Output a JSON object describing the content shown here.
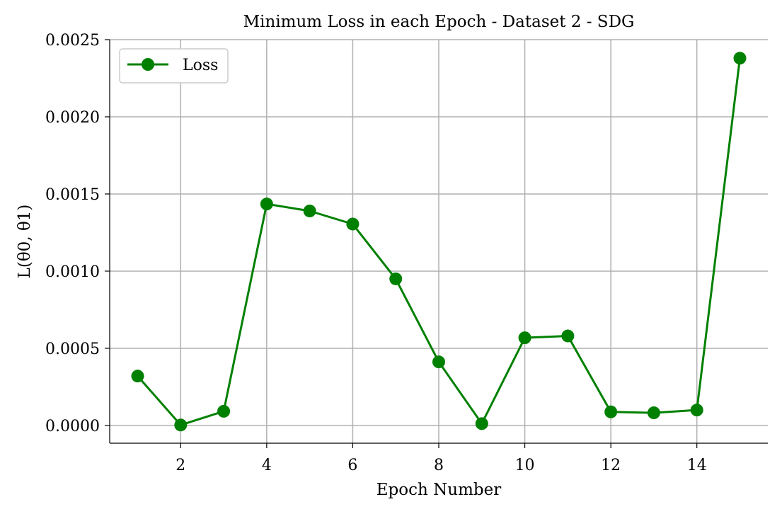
{
  "chart_data": {
    "type": "line",
    "title": "Minimum Loss in each Epoch - Dataset 2 - SDG",
    "xlabel": "Epoch Number",
    "ylabel": "L(θ0, θ1)",
    "xlim": [
      0.35,
      15.65
    ],
    "ylim": [
      -0.000115,
      0.0025
    ],
    "x_ticks": [
      2,
      4,
      6,
      8,
      10,
      12,
      14
    ],
    "x_tick_labels": [
      "2",
      "4",
      "6",
      "8",
      "10",
      "12",
      "14"
    ],
    "y_ticks": [
      0,
      0.0005,
      0.001,
      0.0015,
      0.002,
      0.0025
    ],
    "y_tick_labels": [
      "0.0000",
      "0.0005",
      "0.0010",
      "0.0015",
      "0.0020",
      "0.0025"
    ],
    "grid": true,
    "legend_position": "upper-left",
    "series": [
      {
        "name": "Loss",
        "color": "#008000",
        "marker": "circle",
        "x": [
          1,
          2,
          3,
          4,
          5,
          6,
          7,
          8,
          9,
          10,
          11,
          12,
          13,
          14,
          15
        ],
        "values": [
          0.00032,
          3e-06,
          9.2e-05,
          0.001435,
          0.00139,
          0.001305,
          0.00095,
          0.000412,
          1.2e-05,
          0.000568,
          0.00058,
          8.8e-05,
          8.2e-05,
          0.0001,
          0.00238
        ]
      }
    ]
  }
}
